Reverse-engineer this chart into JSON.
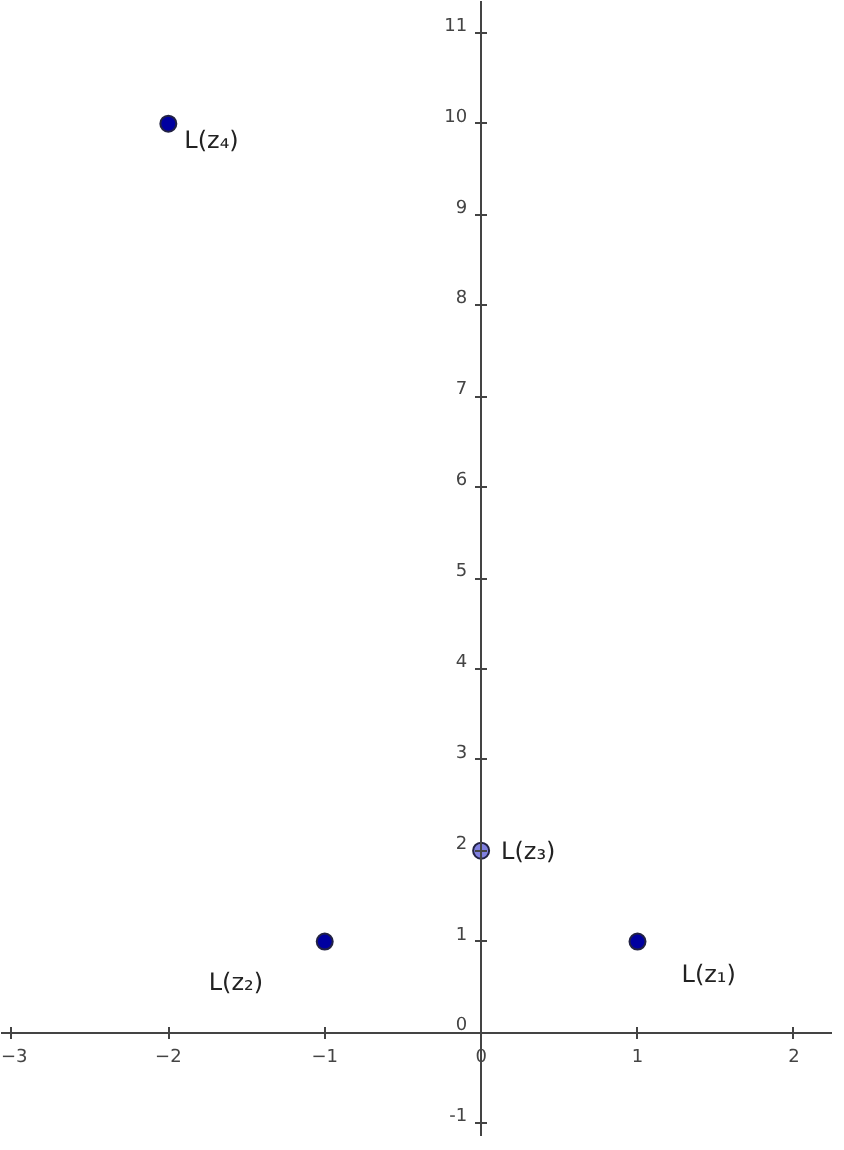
{
  "chart_data": {
    "type": "scatter",
    "x": [
      1,
      -1,
      0,
      -2
    ],
    "values": [
      1,
      1,
      2,
      10
    ],
    "colors": [
      "#0000a0",
      "#0000a0",
      "#8080e0",
      "#0000a0"
    ],
    "xlim": [
      -3.07,
      2.25
    ],
    "ylim": [
      -1.15,
      11.35
    ],
    "xticks": [
      -3,
      -2,
      -1,
      0,
      1,
      2
    ],
    "yticks": [
      -1,
      0,
      1,
      2,
      3,
      4,
      5,
      6,
      7,
      8,
      9,
      10,
      11
    ],
    "marker": "circle",
    "annotations": [
      {
        "text": "L(z₁)",
        "x": 1,
        "y": 1
      },
      {
        "text": "L(z₂)",
        "x": -1,
        "y": 1
      },
      {
        "text": "L(z₃)",
        "x": 0,
        "y": 2
      },
      {
        "text": "L(z₄)",
        "x": -2,
        "y": 10
      }
    ]
  }
}
